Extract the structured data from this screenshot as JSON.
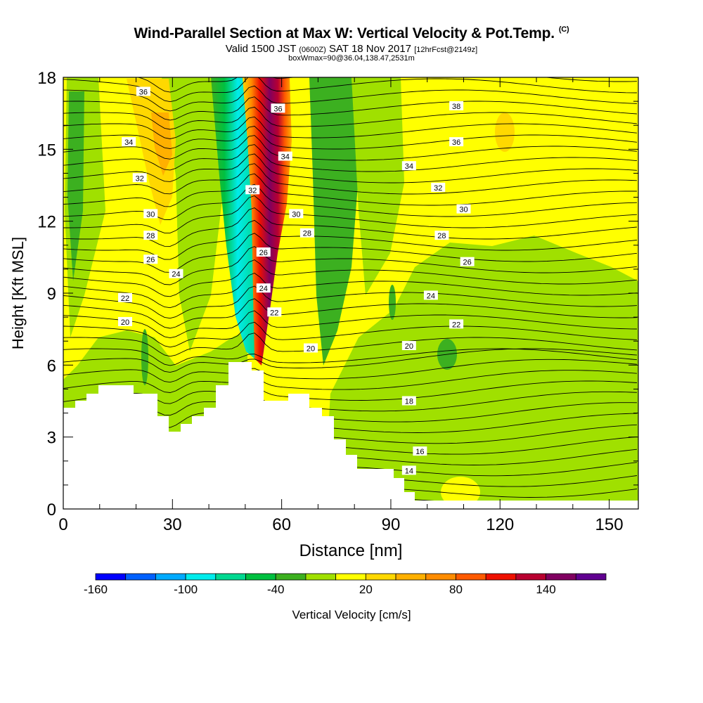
{
  "header": {
    "title": "Wind-Parallel Section at Max W: Vertical Velocity & Pot.Temp.",
    "copyright_mark": "(C)",
    "valid_prefix": "Valid 1500 JST",
    "valid_utc": "(0600Z)",
    "valid_date": "SAT 18 Nov 2017",
    "forecast_info": "[12hrFcst@2149z]",
    "box_info": "boxWmax=90@36.04,138.47,2531m"
  },
  "colors": {
    "terrain": "#ffffff",
    "contour_line": "#000000",
    "contour_label_bg": "#ffffff"
  },
  "chart_data": {
    "type": "heatmap",
    "xlabel": "Distance [nm]",
    "ylabel": "Height [Kft MSL]",
    "xlim": [
      0,
      158
    ],
    "ylim": [
      0,
      18
    ],
    "x_ticks": [
      0,
      30,
      60,
      90,
      120,
      150
    ],
    "y_ticks": [
      0,
      3,
      6,
      9,
      12,
      15,
      18
    ],
    "colorbar": {
      "label": "Vertical Velocity [cm/s]",
      "tick_values": [
        -160,
        -100,
        -40,
        20,
        80,
        140
      ],
      "bins": [
        {
          "from": -160,
          "to": -140,
          "color": "#0000ff"
        },
        {
          "from": -140,
          "to": -120,
          "color": "#0060ff"
        },
        {
          "from": -120,
          "to": -100,
          "color": "#00aaff"
        },
        {
          "from": -100,
          "to": -80,
          "color": "#00ecec"
        },
        {
          "from": -80,
          "to": -60,
          "color": "#00d890"
        },
        {
          "from": -60,
          "to": -40,
          "color": "#00c040"
        },
        {
          "from": -40,
          "to": -20,
          "color": "#3cb020"
        },
        {
          "from": -20,
          "to": 0,
          "color": "#a0e000"
        },
        {
          "from": 0,
          "to": 20,
          "color": "#ffff00"
        },
        {
          "from": 20,
          "to": 40,
          "color": "#ffd800"
        },
        {
          "from": 40,
          "to": 60,
          "color": "#ffb000"
        },
        {
          "from": 60,
          "to": 80,
          "color": "#ff8c00"
        },
        {
          "from": 80,
          "to": 100,
          "color": "#ff5a00"
        },
        {
          "from": 100,
          "to": 120,
          "color": "#ee1000"
        },
        {
          "from": 120,
          "to": 140,
          "color": "#b80030"
        },
        {
          "from": 140,
          "to": 160,
          "color": "#800060"
        },
        {
          "from": 160,
          "to": 180,
          "color": "#600090"
        }
      ]
    },
    "vertical_velocity_features": [
      {
        "x_range": [
          0,
          158
        ],
        "y_range": [
          6,
          18
        ],
        "w_cm_s": 10
      },
      {
        "x_range": [
          60,
          158
        ],
        "y_range": [
          0,
          11
        ],
        "w_cm_s": -10
      },
      {
        "x_range": [
          46,
          52
        ],
        "y_range": [
          6,
          18
        ],
        "w_cm_s": -90
      },
      {
        "x_range": [
          53,
          57
        ],
        "y_range": [
          9,
          17
        ],
        "w_cm_s": 170
      },
      {
        "x_range": [
          25,
          30
        ],
        "y_range": [
          10,
          17
        ],
        "w_cm_s": 30
      }
    ],
    "potential_temperature_labels": [
      {
        "x": 22,
        "y": 17.4,
        "text": "36"
      },
      {
        "x": 59,
        "y": 16.7,
        "text": "36"
      },
      {
        "x": 108,
        "y": 16.8,
        "text": "38"
      },
      {
        "x": 18,
        "y": 15.3,
        "text": "34"
      },
      {
        "x": 61,
        "y": 14.7,
        "text": "34"
      },
      {
        "x": 108,
        "y": 15.3,
        "text": "36"
      },
      {
        "x": 21,
        "y": 13.8,
        "text": "32"
      },
      {
        "x": 52,
        "y": 13.3,
        "text": "32"
      },
      {
        "x": 95,
        "y": 14.3,
        "text": "34"
      },
      {
        "x": 103,
        "y": 13.4,
        "text": "32"
      },
      {
        "x": 24,
        "y": 12.3,
        "text": "30"
      },
      {
        "x": 64,
        "y": 12.3,
        "text": "30"
      },
      {
        "x": 110,
        "y": 12.5,
        "text": "30"
      },
      {
        "x": 24,
        "y": 11.4,
        "text": "28"
      },
      {
        "x": 67,
        "y": 11.5,
        "text": "28"
      },
      {
        "x": 104,
        "y": 11.4,
        "text": "28"
      },
      {
        "x": 24,
        "y": 10.4,
        "text": "26"
      },
      {
        "x": 55,
        "y": 10.7,
        "text": "26"
      },
      {
        "x": 111,
        "y": 10.3,
        "text": "26"
      },
      {
        "x": 31,
        "y": 9.8,
        "text": "24"
      },
      {
        "x": 55,
        "y": 9.2,
        "text": "24"
      },
      {
        "x": 101,
        "y": 8.9,
        "text": "24"
      },
      {
        "x": 17,
        "y": 8.8,
        "text": "22"
      },
      {
        "x": 58,
        "y": 8.2,
        "text": "22"
      },
      {
        "x": 108,
        "y": 7.7,
        "text": "22"
      },
      {
        "x": 17,
        "y": 7.8,
        "text": "20"
      },
      {
        "x": 68,
        "y": 6.7,
        "text": "20"
      },
      {
        "x": 95,
        "y": 6.8,
        "text": "20"
      },
      {
        "x": 95,
        "y": 4.5,
        "text": "18"
      },
      {
        "x": 98,
        "y": 2.4,
        "text": "16"
      },
      {
        "x": 95,
        "y": 1.6,
        "text": "14"
      }
    ]
  }
}
